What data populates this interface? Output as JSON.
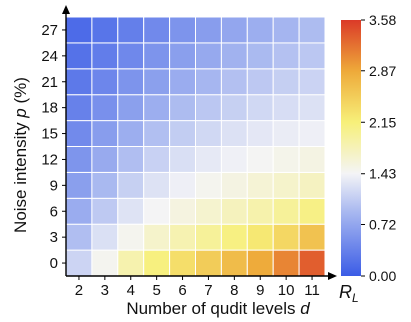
{
  "chart_data": {
    "type": "heatmap",
    "xlabel": "Number of qudit levels d",
    "xlabel_parts": {
      "prefix": "Number of qudit levels ",
      "var": "d"
    },
    "ylabel": "Noise intensity p (%)",
    "ylabel_parts": {
      "prefix": "Noise intensity ",
      "var": "p",
      "suffix": " (%)"
    },
    "x": [
      2,
      3,
      4,
      5,
      6,
      7,
      8,
      9,
      10,
      11
    ],
    "y": [
      0,
      3,
      6,
      9,
      12,
      15,
      18,
      21,
      24,
      27
    ],
    "z": [
      [
        1.15,
        1.47,
        1.85,
        2.12,
        2.33,
        2.52,
        2.68,
        2.85,
        3.1,
        3.35
      ],
      [
        0.95,
        1.25,
        1.48,
        1.68,
        1.83,
        1.97,
        2.1,
        2.23,
        2.4,
        2.62
      ],
      [
        0.78,
        1.05,
        1.28,
        1.44,
        1.56,
        1.66,
        1.76,
        1.86,
        1.97,
        2.08
      ],
      [
        0.65,
        0.9,
        1.11,
        1.27,
        1.39,
        1.48,
        1.55,
        1.62,
        1.68,
        1.74
      ],
      [
        0.55,
        0.76,
        0.95,
        1.12,
        1.24,
        1.33,
        1.4,
        1.45,
        1.5,
        1.54
      ],
      [
        0.45,
        0.63,
        0.8,
        0.96,
        1.08,
        1.18,
        1.26,
        1.32,
        1.36,
        1.39
      ],
      [
        0.36,
        0.51,
        0.66,
        0.8,
        0.93,
        1.03,
        1.11,
        1.18,
        1.23,
        1.26
      ],
      [
        0.28,
        0.41,
        0.54,
        0.66,
        0.78,
        0.88,
        0.97,
        1.04,
        1.1,
        1.14
      ],
      [
        0.21,
        0.32,
        0.43,
        0.54,
        0.65,
        0.75,
        0.84,
        0.91,
        0.98,
        1.03
      ],
      [
        0.15,
        0.24,
        0.34,
        0.44,
        0.54,
        0.63,
        0.72,
        0.8,
        0.87,
        0.93
      ]
    ],
    "colorbar": {
      "label_base": "R",
      "label_sub": "L",
      "min": 0.0,
      "max": 3.58,
      "ticks": [
        0.0,
        0.72,
        1.43,
        2.15,
        2.87,
        3.58
      ],
      "tick_labels": [
        "0.00",
        "0.72",
        "1.43",
        "2.15",
        "2.87",
        "3.58"
      ]
    },
    "colors": {
      "low": "#3b5ce6",
      "mid_low": "#a8b8f0",
      "mid": "#f4f4f6",
      "mid_high": "#f7f07a",
      "high_mid": "#eeaa3a",
      "high": "#db3a28"
    },
    "grid": true
  }
}
